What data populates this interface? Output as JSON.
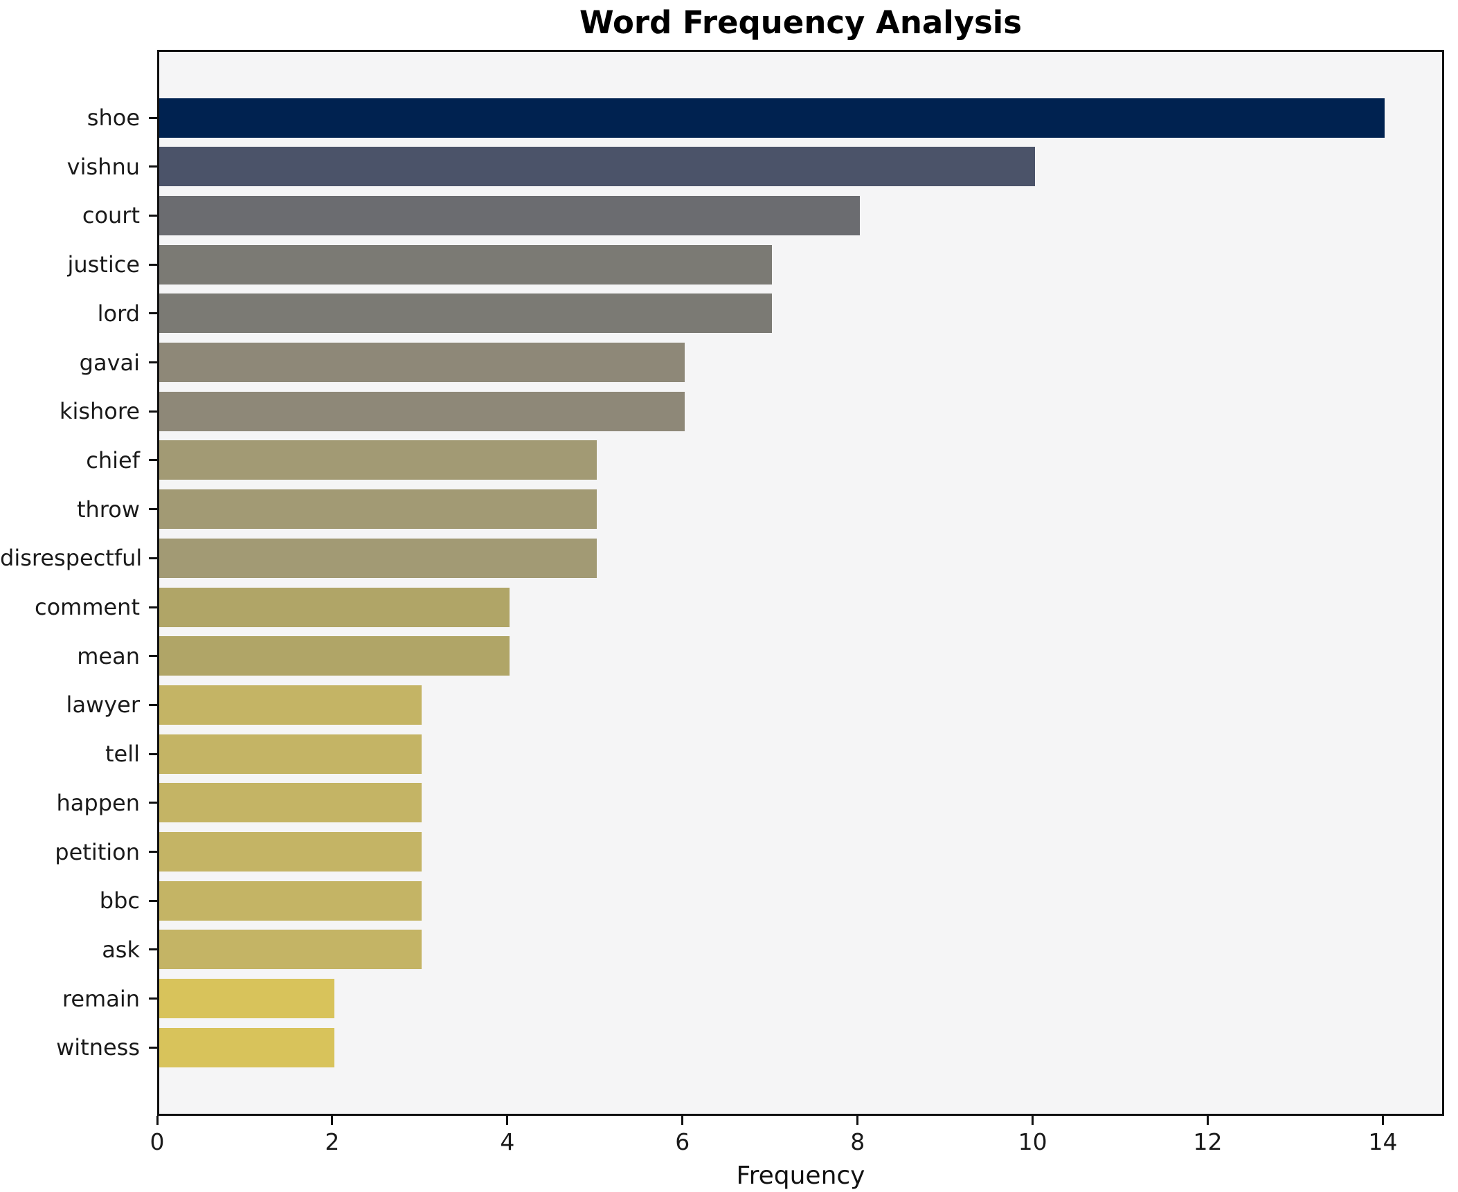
{
  "chart_data": {
    "type": "bar",
    "orientation": "horizontal",
    "title": "Word Frequency Analysis",
    "xlabel": "Frequency",
    "ylabel": "",
    "xlim": [
      0,
      14.7
    ],
    "xticks": [
      0,
      2,
      4,
      6,
      8,
      10,
      12,
      14
    ],
    "grid": false,
    "legend": null,
    "categories": [
      "shoe",
      "vishnu",
      "court",
      "justice",
      "lord",
      "gavai",
      "kishore",
      "chief",
      "throw",
      "disrespectful",
      "comment",
      "mean",
      "lawyer",
      "tell",
      "happen",
      "petition",
      "bbc",
      "ask",
      "remain",
      "witness"
    ],
    "values": [
      14,
      10,
      8,
      7,
      7,
      6,
      6,
      5,
      5,
      5,
      4,
      4,
      3,
      3,
      3,
      3,
      3,
      3,
      2,
      2
    ],
    "bars": [
      {
        "word": "shoe",
        "value": 14,
        "color": "#002250"
      },
      {
        "word": "vishnu",
        "value": 10,
        "color": "#4b5369"
      },
      {
        "word": "court",
        "value": 8,
        "color": "#6b6c70"
      },
      {
        "word": "justice",
        "value": 7,
        "color": "#7b7a74"
      },
      {
        "word": "lord",
        "value": 7,
        "color": "#7b7a74"
      },
      {
        "word": "gavai",
        "value": 6,
        "color": "#8e8878"
      },
      {
        "word": "kishore",
        "value": 6,
        "color": "#8e8878"
      },
      {
        "word": "chief",
        "value": 5,
        "color": "#a29a74"
      },
      {
        "word": "throw",
        "value": 5,
        "color": "#a29a74"
      },
      {
        "word": "disrespectful",
        "value": 5,
        "color": "#a29a74"
      },
      {
        "word": "comment",
        "value": 4,
        "color": "#b0a567"
      },
      {
        "word": "mean",
        "value": 4,
        "color": "#b0a567"
      },
      {
        "word": "lawyer",
        "value": 3,
        "color": "#c4b465"
      },
      {
        "word": "tell",
        "value": 3,
        "color": "#c4b465"
      },
      {
        "word": "happen",
        "value": 3,
        "color": "#c4b465"
      },
      {
        "word": "petition",
        "value": 3,
        "color": "#c4b465"
      },
      {
        "word": "bbc",
        "value": 3,
        "color": "#c4b465"
      },
      {
        "word": "ask",
        "value": 3,
        "color": "#c4b465"
      },
      {
        "word": "remain",
        "value": 2,
        "color": "#d8c35b"
      },
      {
        "word": "witness",
        "value": 2,
        "color": "#d8c35b"
      }
    ],
    "colors": {
      "plot_bg": "#f5f5f6",
      "figure_bg": "#ffffff",
      "spine": "#111111",
      "tick_label": "#1a1a1a",
      "title": "#000000"
    }
  }
}
